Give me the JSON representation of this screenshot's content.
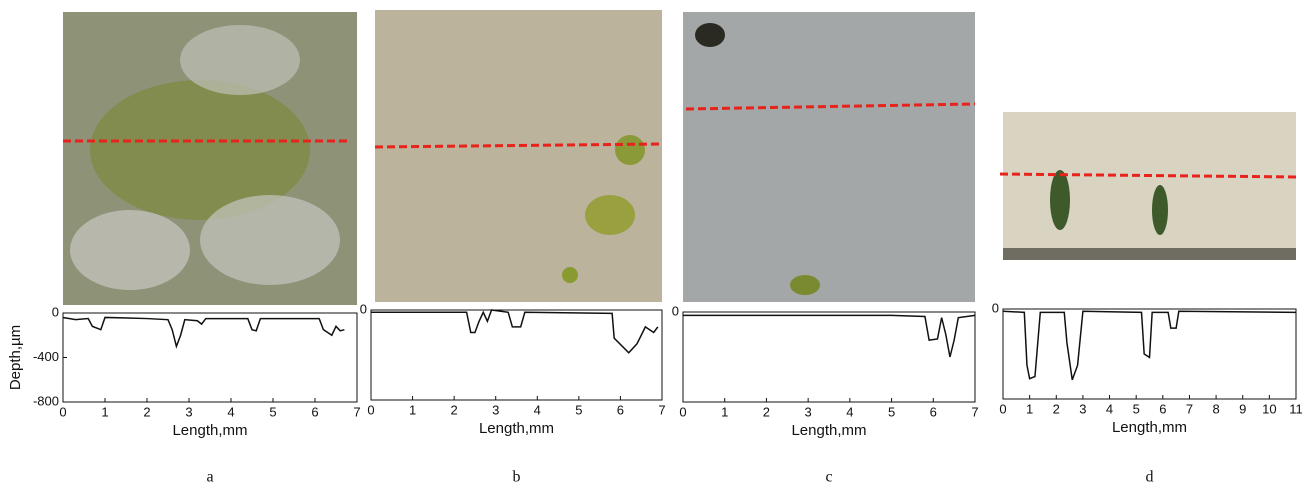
{
  "chart_data": [
    {
      "type": "line",
      "caption": "a",
      "x_label": "Length,mm",
      "y_label": "Depth,µm",
      "xlim": [
        0,
        7
      ],
      "xticks": [
        0,
        1,
        2,
        3,
        4,
        5,
        6,
        7
      ],
      "ylim": [
        -800,
        0
      ],
      "yticks": [
        0,
        -400,
        -800
      ],
      "series": [
        {
          "color": "#111111",
          "x": [
            0,
            0.3,
            0.6,
            0.7,
            0.9,
            1.0,
            2.0,
            2.5,
            2.6,
            2.7,
            2.8,
            2.9,
            3.2,
            3.3,
            3.4,
            4.4,
            4.5,
            4.6,
            4.7,
            6.1,
            6.2,
            6.4,
            6.5,
            6.6,
            6.7
          ],
          "values": [
            -40,
            -60,
            -50,
            -120,
            -150,
            -40,
            -50,
            -60,
            -150,
            -300,
            -200,
            -60,
            -70,
            -100,
            -50,
            -50,
            -150,
            -160,
            -50,
            -50,
            -150,
            -200,
            -120,
            -160,
            -150
          ]
        }
      ]
    },
    {
      "type": "line",
      "caption": "b",
      "x_label": "Length,mm",
      "xlim": [
        0,
        7
      ],
      "xticks": [
        0,
        1,
        2,
        3,
        4,
        5,
        6,
        7
      ],
      "ylim": [
        -800,
        0
      ],
      "yticks": [
        0
      ],
      "series": [
        {
          "color": "#111111",
          "x": [
            0,
            2.3,
            2.4,
            2.5,
            2.6,
            2.7,
            2.8,
            2.9,
            3.3,
            3.4,
            3.6,
            3.7,
            5.8,
            5.85,
            6.2,
            6.4,
            6.6,
            6.8,
            6.9
          ],
          "values": [
            -20,
            -20,
            -200,
            -200,
            -100,
            -20,
            -100,
            0,
            -20,
            -150,
            -150,
            -20,
            -30,
            -250,
            -380,
            -300,
            -150,
            -200,
            -150
          ]
        }
      ]
    },
    {
      "type": "line",
      "caption": "c",
      "x_label": "Length,mm",
      "xlim": [
        0,
        7
      ],
      "xticks": [
        0,
        1,
        2,
        3,
        4,
        5,
        6,
        7
      ],
      "ylim": [
        -800,
        0
      ],
      "yticks": [
        0
      ],
      "series": [
        {
          "color": "#111111",
          "x": [
            0,
            5,
            5.8,
            5.9,
            6.1,
            6.2,
            6.3,
            6.4,
            6.5,
            6.6,
            7
          ],
          "values": [
            -30,
            -30,
            -40,
            -250,
            -240,
            -50,
            -200,
            -400,
            -250,
            -50,
            -30
          ]
        }
      ]
    },
    {
      "type": "line",
      "caption": "d",
      "x_label": "Length,mm",
      "xlim": [
        0,
        11
      ],
      "xticks": [
        0,
        1,
        2,
        3,
        4,
        5,
        6,
        7,
        8,
        9,
        10,
        11
      ],
      "ylim": [
        -800,
        0
      ],
      "yticks": [
        0
      ],
      "series": [
        {
          "color": "#111111",
          "x": [
            0,
            0.8,
            0.9,
            1.0,
            1.2,
            1.4,
            2.3,
            2.4,
            2.6,
            2.8,
            3.0,
            5.2,
            5.3,
            5.5,
            5.6,
            6.2,
            6.3,
            6.5,
            6.6,
            11
          ],
          "values": [
            -20,
            -30,
            -500,
            -620,
            -600,
            -30,
            -30,
            -300,
            -630,
            -500,
            -20,
            -30,
            -400,
            -430,
            -30,
            -30,
            -170,
            -170,
            -20,
            -30
          ]
        }
      ]
    }
  ]
}
